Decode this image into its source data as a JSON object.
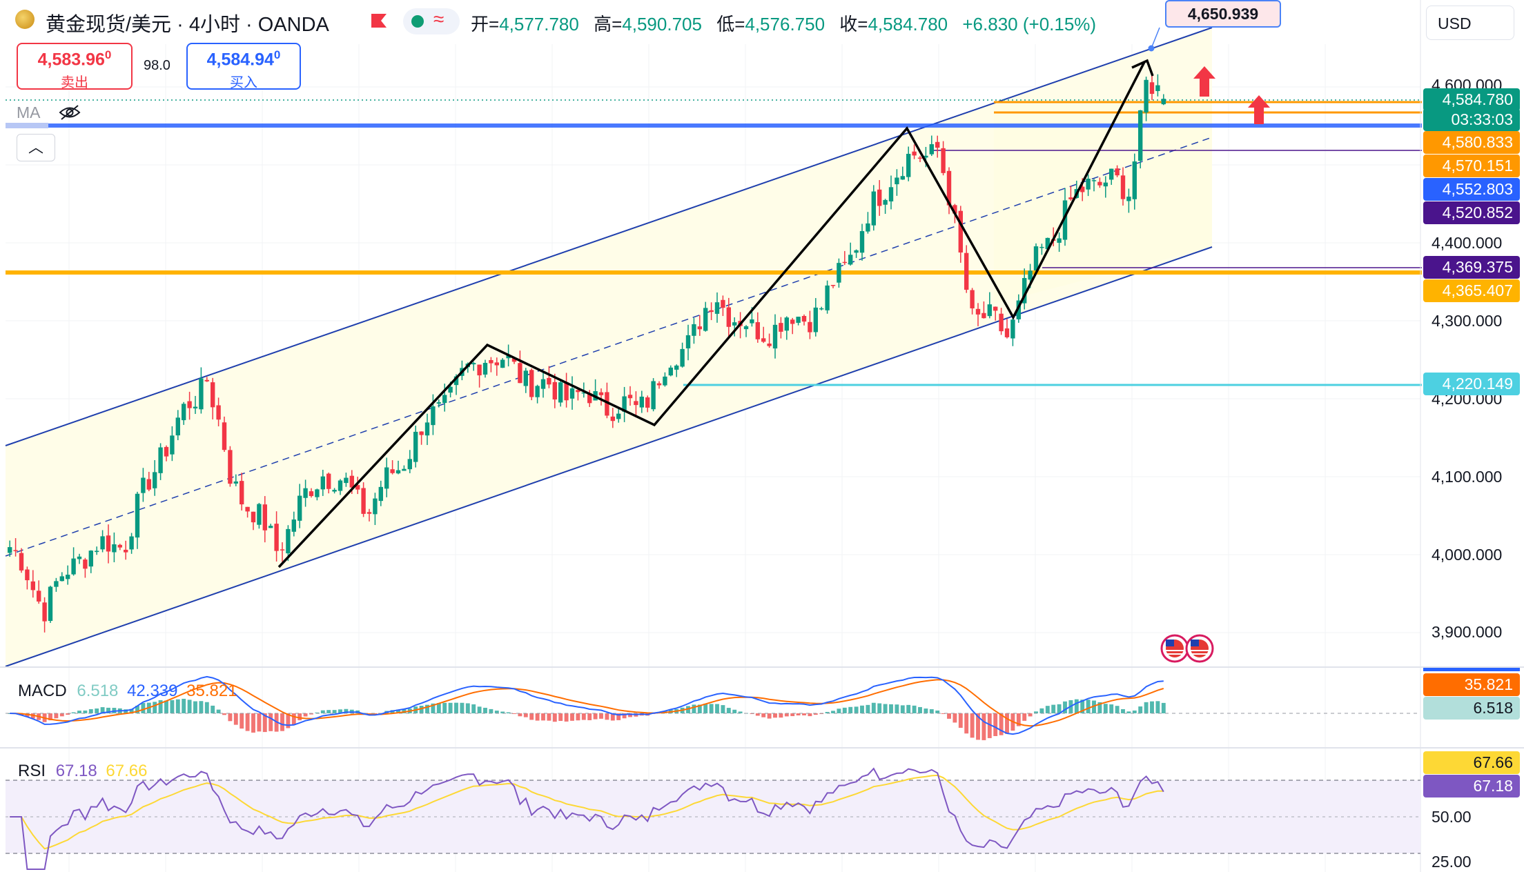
{
  "header": {
    "symbol_title": "黄金现货/美元 · 4小时 · OANDA",
    "ohlc": [
      {
        "label": "开=",
        "value": "4,577.780"
      },
      {
        "label": "高=",
        "value": "4,590.705"
      },
      {
        "label": "低=",
        "value": "4,576.750"
      },
      {
        "label": "收=",
        "value": "4,584.780"
      },
      {
        "label": "",
        "value": "+6.830 (+0.15%)"
      }
    ],
    "currency": "USD"
  },
  "trade": {
    "sell_price": "4,583.96",
    "sell_price_sup": "0",
    "sell_label": "卖出",
    "spread": "98.0",
    "buy_price": "4,584.94",
    "buy_price_sup": "0",
    "buy_label": "买入"
  },
  "ma_label": "MA",
  "target_label": "4,650.939",
  "colors": {
    "up": "#089981",
    "down": "#f23645",
    "channel_line": "#1f3fad",
    "channel_fill": "#fffde8",
    "orange": "#ff9800",
    "blue_line": "#2962ff",
    "purple": "#4a148c",
    "cyan": "#4dd0e1",
    "macd_line": "#2962ff",
    "signal_line": "#ff6d00",
    "rsi_line": "#7e57c2",
    "rsi_ma": "#fdd835",
    "rsi_band": "#f3effb"
  },
  "price_pills": [
    {
      "value": "4,584.780",
      "color": "#089981",
      "kind": "last"
    },
    {
      "value": "03:33:03",
      "color": "#089981",
      "kind": "countdown"
    },
    {
      "value": "4,580.833",
      "color": "#ff9800",
      "kind": "level"
    },
    {
      "value": "4,570.151",
      "color": "#ff9800",
      "kind": "level"
    },
    {
      "value": "4,552.803",
      "color": "#2962ff",
      "kind": "level"
    },
    {
      "value": "4,520.852",
      "color": "#4a148c",
      "kind": "level"
    },
    {
      "value": "4,369.375",
      "color": "#4a148c",
      "kind": "level"
    },
    {
      "value": "4,365.407",
      "color": "#ffb300",
      "kind": "level"
    },
    {
      "value": "4,220.149",
      "color": "#4dd0e1",
      "kind": "level"
    }
  ],
  "macd": {
    "title": "MACD",
    "hist_value": "6.518",
    "macd_value": "42.339",
    "signal_value": "35.821",
    "pill_signal": "35.821",
    "pill_hist": "6.518"
  },
  "rsi": {
    "title": "RSI",
    "rsi_value": "67.18",
    "ma_value": "67.66",
    "pill_ma": "67.66",
    "pill_rsi": "67.18",
    "ticks": [
      "50.00",
      "25.00"
    ]
  },
  "chart_data": {
    "type": "candlestick",
    "title": "黄金现货/美元 · 4小时 · OANDA",
    "y_axis_ticks": [
      "4,600.000",
      "4,400.000",
      "4,300.000",
      "4,200.000",
      "4,100.000",
      "4,000.000",
      "3,900.000"
    ],
    "y_range": [
      3830,
      4690
    ],
    "candle_count": 200,
    "price_path_keypoints": [
      {
        "i": 0,
        "price": 4010
      },
      {
        "i": 6,
        "price": 3935
      },
      {
        "i": 12,
        "price": 4000
      },
      {
        "i": 20,
        "price": 4020
      },
      {
        "i": 26,
        "price": 4130
      },
      {
        "i": 34,
        "price": 4230
      },
      {
        "i": 38,
        "price": 4100
      },
      {
        "i": 46,
        "price": 4010
      },
      {
        "i": 54,
        "price": 4110
      },
      {
        "i": 62,
        "price": 4060
      },
      {
        "i": 72,
        "price": 4170
      },
      {
        "i": 82,
        "price": 4260
      },
      {
        "i": 92,
        "price": 4215
      },
      {
        "i": 108,
        "price": 4185
      },
      {
        "i": 122,
        "price": 4330
      },
      {
        "i": 128,
        "price": 4285
      },
      {
        "i": 140,
        "price": 4315
      },
      {
        "i": 152,
        "price": 4490
      },
      {
        "i": 160,
        "price": 4525
      },
      {
        "i": 166,
        "price": 4310
      },
      {
        "i": 172,
        "price": 4285
      },
      {
        "i": 178,
        "price": 4390
      },
      {
        "i": 186,
        "price": 4480
      },
      {
        "i": 193,
        "price": 4470
      },
      {
        "i": 196,
        "price": 4600
      },
      {
        "i": 199,
        "price": 4585
      }
    ],
    "last": {
      "open": 4577.78,
      "high": 4590.705,
      "low": 4576.75,
      "close": 4584.78
    },
    "horizontal_levels": [
      4580.833,
      4570.151,
      4552.803,
      4520.852,
      4369.375,
      4365.407,
      4220.149
    ],
    "target": 4650.939,
    "zigzag": [
      {
        "price": 3990,
        "i": 40
      },
      {
        "price": 4270,
        "i": 68
      },
      {
        "price": 4175,
        "i": 94
      },
      {
        "price": 4550,
        "i": 132
      },
      {
        "price": 4300,
        "i": 144
      },
      {
        "price": 4640,
        "i": 164
      }
    ]
  }
}
